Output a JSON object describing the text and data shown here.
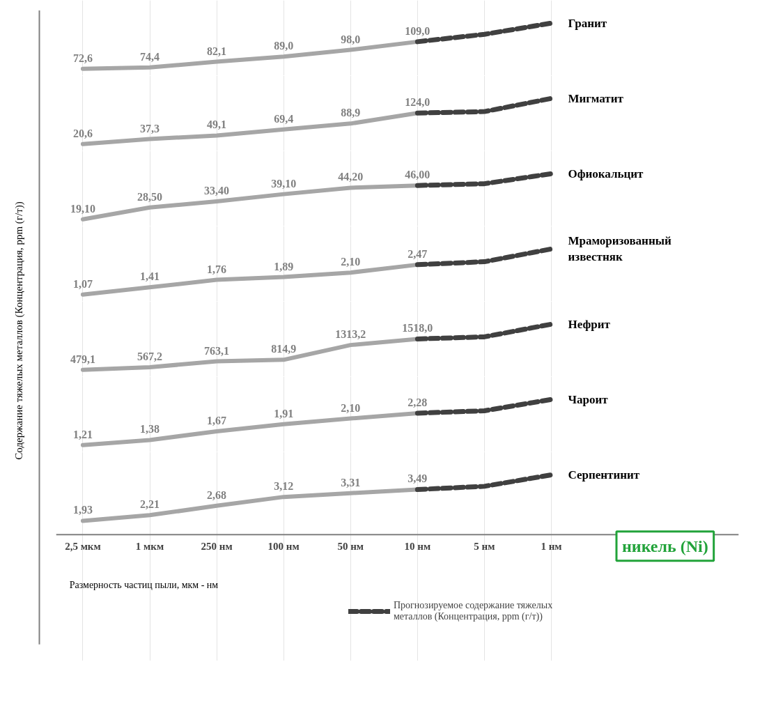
{
  "chart_data": [
    {
      "type": "line",
      "categories": [
        null,
        null,
        null,
        null,
        null,
        null,
        null,
        null
      ],
      "grid": "x",
      "tick_labels": false,
      "title": "Гранит",
      "series": [
        {
          "color": "#a6a6a6",
          "line_style": "solid",
          "values": [
            72.6,
            74.4,
            82.1,
            89.0,
            98.0,
            109.0,
            null,
            null
          ],
          "value_labels": [
            "72,6",
            "74,4",
            "82,1",
            "89,0",
            "98,0",
            "109,0",
            null,
            null
          ]
        },
        {
          "color": "#404040",
          "line_style": "dashed",
          "values": [
            null,
            null,
            null,
            null,
            null,
            109.0,
            119,
            134
          ]
        }
      ]
    },
    {
      "type": "line",
      "categories": [
        null,
        null,
        null,
        null,
        null,
        null,
        null,
        null
      ],
      "grid": "x",
      "tick_labels": false,
      "title": "Мигматит",
      "series": [
        {
          "color": "#a6a6a6",
          "line_style": "solid",
          "values": [
            20.6,
            37.3,
            49.1,
            69.4,
            88.9,
            124.0,
            null,
            null
          ],
          "value_labels": [
            "20,6",
            "37,3",
            "49,1",
            "69,4",
            "88,9",
            "124,0",
            null,
            null
          ]
        },
        {
          "color": "#404040",
          "line_style": "dashed",
          "values": [
            null,
            null,
            null,
            null,
            null,
            124.0,
            129,
            173
          ]
        }
      ]
    },
    {
      "type": "line",
      "categories": [
        null,
        null,
        null,
        null,
        null,
        null,
        null,
        null
      ],
      "grid": "x",
      "tick_labels": false,
      "title": "Офиокальцит",
      "series": [
        {
          "color": "#a6a6a6",
          "line_style": "solid",
          "values": [
            19.1,
            28.5,
            33.4,
            39.1,
            44.2,
            46.0,
            null,
            null
          ],
          "value_labels": [
            "19,10",
            "28,50",
            "33,40",
            "39,10",
            "44,20",
            "46,00",
            null,
            null
          ]
        },
        {
          "color": "#404040",
          "line_style": "dashed",
          "values": [
            null,
            null,
            null,
            null,
            null,
            46.0,
            47.4,
            55.4
          ]
        }
      ]
    },
    {
      "type": "line",
      "categories": [
        null,
        null,
        null,
        null,
        null,
        null,
        null,
        null
      ],
      "grid": "x",
      "tick_labels": false,
      "title": "Мраморизованный известняк",
      "series": [
        {
          "color": "#a6a6a6",
          "line_style": "solid",
          "values": [
            1.07,
            1.41,
            1.76,
            1.89,
            2.1,
            2.47,
            null,
            null
          ],
          "value_labels": [
            "1,07",
            "1,41",
            "1,76",
            "1,89",
            "2,10",
            "2,47",
            null,
            null
          ]
        },
        {
          "color": "#404040",
          "line_style": "dashed",
          "values": [
            null,
            null,
            null,
            null,
            null,
            2.47,
            2.61,
            3.21
          ]
        }
      ]
    },
    {
      "type": "line",
      "categories": [
        null,
        null,
        null,
        null,
        null,
        null,
        null,
        null
      ],
      "grid": "x",
      "tick_labels": false,
      "title": "Нефрит",
      "series": [
        {
          "color": "#a6a6a6",
          "line_style": "solid",
          "values": [
            479.1,
            567.2,
            763.1,
            814.9,
            1313.2,
            1518.0,
            null,
            null
          ],
          "value_labels": [
            "479,1",
            "567,2",
            "763,1",
            "814,9",
            "1313,2",
            "1518,0",
            null,
            null
          ]
        },
        {
          "color": "#404040",
          "line_style": "dashed",
          "values": [
            null,
            null,
            null,
            null,
            null,
            1518.0,
            1589,
            2015
          ]
        }
      ]
    },
    {
      "type": "line",
      "categories": [
        null,
        null,
        null,
        null,
        null,
        null,
        null,
        null
      ],
      "grid": "x",
      "tick_labels": false,
      "title": "Чароит",
      "series": [
        {
          "color": "#a6a6a6",
          "line_style": "solid",
          "values": [
            1.21,
            1.38,
            1.67,
            1.91,
            2.1,
            2.28,
            null,
            null
          ],
          "value_labels": [
            "1,21",
            "1,38",
            "1,67",
            "1,91",
            "2,10",
            "2,28",
            null,
            null
          ]
        },
        {
          "color": "#404040",
          "line_style": "dashed",
          "values": [
            null,
            null,
            null,
            null,
            null,
            2.28,
            2.36,
            2.74
          ]
        }
      ]
    },
    {
      "type": "line",
      "categories": [
        "2,5 мкм",
        "1 мкм",
        "250 нм",
        "100 нм",
        "50 нм",
        "10 нм",
        "5 нм",
        "1 нм"
      ],
      "grid": "x",
      "tick_labels": "x",
      "xlabel": "Размерность частиц пыли, мкм - нм",
      "ylabel": "Содержание тяжелых металлов (Концентрация, ppm (г/т))",
      "legend": "bottom",
      "annotations": [
        "никель (Ni)"
      ],
      "title": "Серпентинит",
      "series": [
        {
          "color": "#a6a6a6",
          "line_style": "solid",
          "values": [
            1.93,
            2.21,
            2.68,
            3.12,
            3.31,
            3.49,
            null,
            null
          ],
          "value_labels": [
            "1,93",
            "2,21",
            "2,68",
            "3,12",
            "3,31",
            "3,49",
            null,
            null
          ]
        },
        {
          "name": "Прогнозируемое содержание тяжелых металлов (Концентрация, ppm (г/т))",
          "color": "#404040",
          "line_style": "dashed",
          "values": [
            null,
            null,
            null,
            null,
            null,
            3.49,
            3.65,
            4.22
          ]
        }
      ]
    }
  ]
}
